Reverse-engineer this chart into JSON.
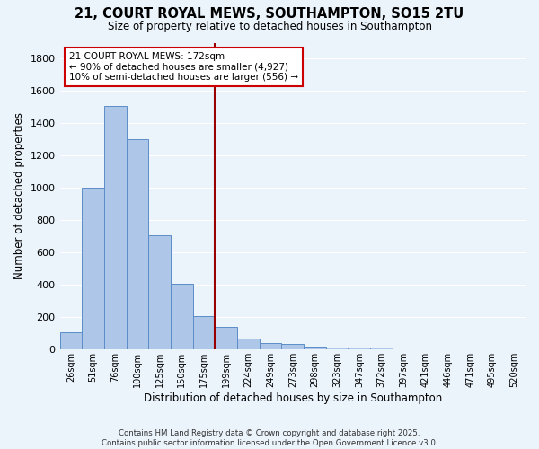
{
  "title_line1": "21, COURT ROYAL MEWS, SOUTHAMPTON, SO15 2TU",
  "title_line2": "Size of property relative to detached houses in Southampton",
  "xlabel": "Distribution of detached houses by size in Southampton",
  "ylabel": "Number of detached properties",
  "bar_labels": [
    "26sqm",
    "51sqm",
    "76sqm",
    "100sqm",
    "125sqm",
    "150sqm",
    "175sqm",
    "199sqm",
    "224sqm",
    "249sqm",
    "273sqm",
    "298sqm",
    "323sqm",
    "347sqm",
    "372sqm",
    "397sqm",
    "421sqm",
    "446sqm",
    "471sqm",
    "495sqm",
    "520sqm"
  ],
  "bar_values": [
    110,
    1000,
    1510,
    1300,
    710,
    410,
    210,
    140,
    70,
    40,
    35,
    20,
    10,
    10,
    15,
    0,
    0,
    0,
    0,
    0,
    0
  ],
  "bar_color": "#AEC6E8",
  "bar_edge_color": "#5B8DC8",
  "bg_color": "#EBF3FB",
  "grid_color": "#FFFFFF",
  "vline_x_index": 6,
  "vline_color": "#990000",
  "annotation_text": "21 COURT ROYAL MEWS: 172sqm\n← 90% of detached houses are smaller (4,927)\n10% of semi-detached houses are larger (556) →",
  "annotation_box_color": "#FFFFFF",
  "annotation_box_edge": "#CC0000",
  "footnote": "Contains HM Land Registry data © Crown copyright and database right 2025.\nContains public sector information licensed under the Open Government Licence v3.0.",
  "ylim": [
    0,
    1900
  ],
  "yticks": [
    0,
    200,
    400,
    600,
    800,
    1000,
    1200,
    1400,
    1600,
    1800
  ]
}
